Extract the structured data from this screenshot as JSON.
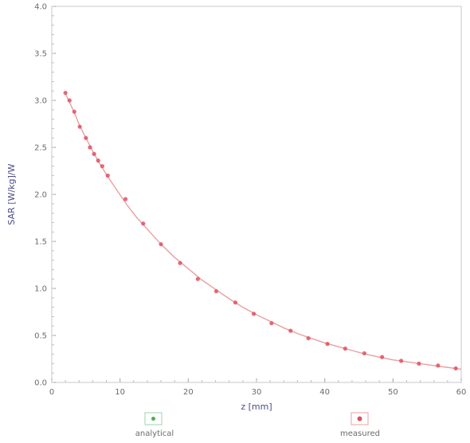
{
  "chart_data": {
    "type": "line",
    "xlabel": "z [mm]",
    "ylabel": "SAR [W/kg]/W",
    "xlim": [
      0,
      60
    ],
    "ylim": [
      0,
      4
    ],
    "x_ticks": [
      "0",
      "10",
      "20",
      "30",
      "40",
      "50",
      "60"
    ],
    "y_ticks": [
      "0.0",
      "0.5",
      "1.0",
      "1.5",
      "2.0",
      "2.5",
      "3.0",
      "3.5",
      "4.0"
    ],
    "grid": false,
    "legend_position": "bottom",
    "series": [
      {
        "name": "analytical",
        "style": "line",
        "color": "#e8a0a0",
        "marker_color": "#4caf50",
        "x": [
          2.0,
          2.6,
          3.3,
          4.1,
          5.0,
          6.0,
          7.0,
          8.2,
          9.5,
          11.0,
          12.5,
          14.0,
          16.0,
          18.0,
          20.0,
          22.0,
          24.0,
          26.0,
          28.0,
          30.0,
          32.0,
          34.0,
          36.0,
          38.0,
          40.0,
          42.0,
          44.0,
          46.0,
          48.0,
          50.0,
          52.0,
          54.0,
          56.0,
          58.0,
          60.0
        ],
        "y": [
          3.07,
          2.98,
          2.87,
          2.73,
          2.6,
          2.46,
          2.33,
          2.19,
          2.05,
          1.89,
          1.75,
          1.63,
          1.47,
          1.33,
          1.21,
          1.09,
          0.99,
          0.89,
          0.8,
          0.72,
          0.65,
          0.58,
          0.52,
          0.47,
          0.42,
          0.38,
          0.34,
          0.3,
          0.27,
          0.24,
          0.22,
          0.2,
          0.18,
          0.16,
          0.14
        ]
      },
      {
        "name": "measured",
        "style": "markers",
        "color": "#e05060",
        "x": [
          2.0,
          2.6,
          3.3,
          4.1,
          5.0,
          5.6,
          6.2,
          6.8,
          7.4,
          8.2,
          10.8,
          13.4,
          16.0,
          18.8,
          21.4,
          24.1,
          26.9,
          29.6,
          32.2,
          35.0,
          37.6,
          40.4,
          43.0,
          45.8,
          48.4,
          51.2,
          53.8,
          56.6,
          59.2
        ],
        "y": [
          3.08,
          3.0,
          2.88,
          2.72,
          2.6,
          2.5,
          2.43,
          2.36,
          2.3,
          2.2,
          1.95,
          1.69,
          1.47,
          1.27,
          1.1,
          0.97,
          0.85,
          0.73,
          0.63,
          0.55,
          0.47,
          0.41,
          0.36,
          0.31,
          0.27,
          0.23,
          0.2,
          0.18,
          0.15
        ]
      }
    ]
  }
}
